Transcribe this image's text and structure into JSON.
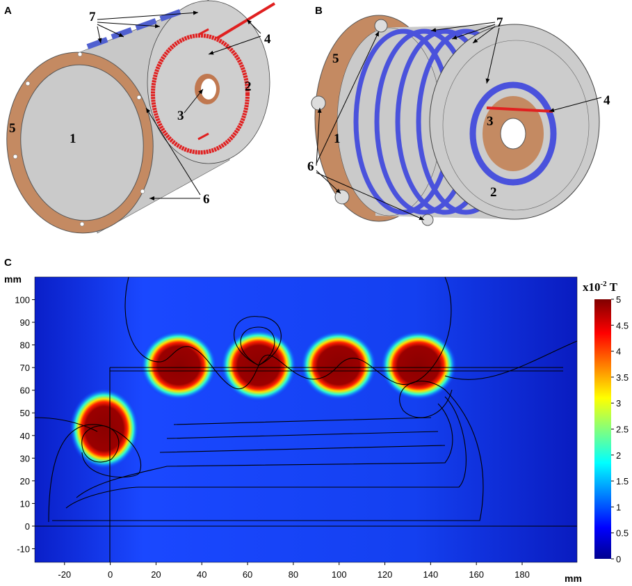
{
  "panels": {
    "A": {
      "label": "A",
      "callouts": [
        "1",
        "2",
        "3",
        "4",
        "5",
        "6",
        "7"
      ]
    },
    "B": {
      "label": "B",
      "callouts": [
        "1",
        "2",
        "3",
        "4",
        "5",
        "6",
        "7"
      ]
    },
    "C": {
      "label": "C",
      "x_unit": "mm",
      "y_unit": "mm",
      "xlim": [
        -33,
        204
      ],
      "ylim": [
        -16,
        110
      ],
      "xticks": [
        -20,
        0,
        20,
        40,
        60,
        80,
        100,
        120,
        140,
        160,
        180
      ],
      "yticks": [
        -10,
        0,
        10,
        20,
        30,
        40,
        50,
        60,
        70,
        80,
        90,
        100
      ],
      "colorbar": {
        "title_base": "x10",
        "title_exponent": "-2",
        "title_unit": "T",
        "clim": [
          0,
          5
        ],
        "ticks": [
          0,
          0.5,
          1,
          1.5,
          2,
          2.5,
          3,
          3.5,
          4,
          4.5,
          5
        ]
      }
    }
  }
}
